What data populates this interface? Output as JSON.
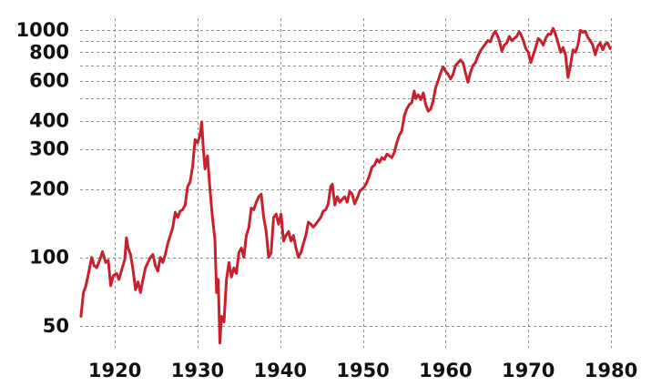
{
  "chart_data": {
    "type": "line",
    "title": "",
    "xlabel": "",
    "ylabel": "",
    "y_scale": "log",
    "grid": true,
    "xlim": [
      1915.8,
      1980
    ],
    "ylim": [
      40,
      1130
    ],
    "x_ticks": [
      1920,
      1930,
      1940,
      1950,
      1960,
      1970,
      1980
    ],
    "x_tick_labels": [
      "1920",
      "1930",
      "1940",
      "1950",
      "1960",
      "1970",
      "1980"
    ],
    "y_ticks": [
      50,
      100,
      200,
      300,
      400,
      600,
      800,
      1000
    ],
    "y_tick_labels": [
      "50",
      "100",
      "200",
      "300",
      "400",
      "600",
      "800",
      "1000"
    ],
    "y_grid_values": [
      50,
      100,
      200,
      300,
      400,
      500,
      600,
      700,
      800,
      900,
      1000
    ],
    "series": [
      {
        "color": "#c8202c",
        "points": [
          [
            1915.9,
            55
          ],
          [
            1916.2,
            70
          ],
          [
            1916.5,
            75
          ],
          [
            1916.9,
            88
          ],
          [
            1917.2,
            100
          ],
          [
            1917.5,
            92
          ],
          [
            1917.8,
            90
          ],
          [
            1918.2,
            98
          ],
          [
            1918.5,
            106
          ],
          [
            1918.9,
            95
          ],
          [
            1919.2,
            97
          ],
          [
            1919.5,
            75
          ],
          [
            1919.8,
            83
          ],
          [
            1920.2,
            85
          ],
          [
            1920.5,
            80
          ],
          [
            1920.9,
            90
          ],
          [
            1921.2,
            98
          ],
          [
            1921.4,
            122
          ],
          [
            1921.6,
            110
          ],
          [
            1921.9,
            103
          ],
          [
            1922.2,
            88
          ],
          [
            1922.5,
            72
          ],
          [
            1922.8,
            78
          ],
          [
            1923.1,
            70
          ],
          [
            1923.4,
            80
          ],
          [
            1923.7,
            90
          ],
          [
            1924.0,
            95
          ],
          [
            1924.3,
            100
          ],
          [
            1924.6,
            103
          ],
          [
            1924.9,
            92
          ],
          [
            1925.2,
            87
          ],
          [
            1925.5,
            100
          ],
          [
            1925.8,
            95
          ],
          [
            1926.1,
            103
          ],
          [
            1926.4,
            115
          ],
          [
            1926.7,
            125
          ],
          [
            1927.0,
            135
          ],
          [
            1927.3,
            158
          ],
          [
            1927.6,
            150
          ],
          [
            1927.9,
            160
          ],
          [
            1928.2,
            162
          ],
          [
            1928.5,
            170
          ],
          [
            1928.8,
            205
          ],
          [
            1929.1,
            215
          ],
          [
            1929.4,
            250
          ],
          [
            1929.7,
            330
          ],
          [
            1930.0,
            320
          ],
          [
            1930.3,
            345
          ],
          [
            1930.5,
            395
          ],
          [
            1930.7,
            300
          ],
          [
            1930.9,
            245
          ],
          [
            1931.2,
            280
          ],
          [
            1931.5,
            200
          ],
          [
            1931.8,
            150
          ],
          [
            1932.1,
            120
          ],
          [
            1932.3,
            70
          ],
          [
            1932.5,
            80
          ],
          [
            1932.7,
            42
          ],
          [
            1932.9,
            55
          ],
          [
            1933.2,
            52
          ],
          [
            1933.5,
            80
          ],
          [
            1933.8,
            95
          ],
          [
            1934.1,
            82
          ],
          [
            1934.4,
            90
          ],
          [
            1934.7,
            85
          ],
          [
            1935.0,
            105
          ],
          [
            1935.3,
            110
          ],
          [
            1935.6,
            100
          ],
          [
            1935.9,
            125
          ],
          [
            1936.2,
            135
          ],
          [
            1936.5,
            165
          ],
          [
            1936.8,
            162
          ],
          [
            1937.1,
            175
          ],
          [
            1937.4,
            185
          ],
          [
            1937.7,
            190
          ],
          [
            1938.0,
            150
          ],
          [
            1938.3,
            130
          ],
          [
            1938.6,
            100
          ],
          [
            1938.9,
            105
          ],
          [
            1939.2,
            150
          ],
          [
            1939.5,
            155
          ],
          [
            1939.8,
            140
          ],
          [
            1940.1,
            155
          ],
          [
            1940.4,
            118
          ],
          [
            1940.7,
            125
          ],
          [
            1941.0,
            130
          ],
          [
            1941.3,
            118
          ],
          [
            1941.6,
            125
          ],
          [
            1941.9,
            110
          ],
          [
            1942.2,
            100
          ],
          [
            1942.5,
            105
          ],
          [
            1942.8,
            115
          ],
          [
            1943.1,
            125
          ],
          [
            1943.4,
            143
          ],
          [
            1943.7,
            140
          ],
          [
            1944.0,
            136
          ],
          [
            1944.3,
            140
          ],
          [
            1944.6,
            145
          ],
          [
            1944.9,
            150
          ],
          [
            1945.2,
            160
          ],
          [
            1945.5,
            162
          ],
          [
            1945.8,
            172
          ],
          [
            1946.1,
            205
          ],
          [
            1946.3,
            210
          ],
          [
            1946.6,
            170
          ],
          [
            1946.9,
            185
          ],
          [
            1947.2,
            175
          ],
          [
            1947.5,
            180
          ],
          [
            1947.8,
            185
          ],
          [
            1948.1,
            175
          ],
          [
            1948.4,
            195
          ],
          [
            1948.7,
            190
          ],
          [
            1949.0,
            172
          ],
          [
            1949.3,
            182
          ],
          [
            1949.6,
            195
          ],
          [
            1949.9,
            200
          ],
          [
            1950.2,
            205
          ],
          [
            1950.5,
            215
          ],
          [
            1950.8,
            230
          ],
          [
            1951.1,
            250
          ],
          [
            1951.4,
            255
          ],
          [
            1951.7,
            270
          ],
          [
            1952.0,
            262
          ],
          [
            1952.3,
            275
          ],
          [
            1952.6,
            270
          ],
          [
            1952.9,
            285
          ],
          [
            1953.2,
            280
          ],
          [
            1953.5,
            275
          ],
          [
            1953.8,
            290
          ],
          [
            1954.1,
            320
          ],
          [
            1954.4,
            345
          ],
          [
            1954.7,
            360
          ],
          [
            1955.0,
            420
          ],
          [
            1955.3,
            450
          ],
          [
            1955.6,
            470
          ],
          [
            1955.9,
            480
          ],
          [
            1956.2,
            540
          ],
          [
            1956.4,
            500
          ],
          [
            1956.7,
            520
          ],
          [
            1957.0,
            495
          ],
          [
            1957.3,
            530
          ],
          [
            1957.6,
            470
          ],
          [
            1957.9,
            440
          ],
          [
            1958.2,
            450
          ],
          [
            1958.5,
            490
          ],
          [
            1958.8,
            560
          ],
          [
            1959.1,
            600
          ],
          [
            1959.4,
            650
          ],
          [
            1959.7,
            690
          ],
          [
            1960.0,
            660
          ],
          [
            1960.3,
            640
          ],
          [
            1960.6,
            610
          ],
          [
            1960.9,
            640
          ],
          [
            1961.2,
            700
          ],
          [
            1961.5,
            720
          ],
          [
            1961.8,
            740
          ],
          [
            1962.1,
            720
          ],
          [
            1962.4,
            650
          ],
          [
            1962.7,
            590
          ],
          [
            1963.0,
            650
          ],
          [
            1963.3,
            700
          ],
          [
            1963.6,
            720
          ],
          [
            1963.9,
            770
          ],
          [
            1964.2,
            810
          ],
          [
            1964.5,
            840
          ],
          [
            1964.8,
            870
          ],
          [
            1965.1,
            900
          ],
          [
            1965.4,
            890
          ],
          [
            1965.7,
            950
          ],
          [
            1966.0,
            990
          ],
          [
            1966.2,
            960
          ],
          [
            1966.5,
            900
          ],
          [
            1966.8,
            810
          ],
          [
            1967.1,
            860
          ],
          [
            1967.4,
            880
          ],
          [
            1967.7,
            940
          ],
          [
            1968.0,
            900
          ],
          [
            1968.3,
            920
          ],
          [
            1968.6,
            940
          ],
          [
            1968.9,
            985
          ],
          [
            1969.1,
            960
          ],
          [
            1969.4,
            900
          ],
          [
            1969.7,
            830
          ],
          [
            1970.0,
            800
          ],
          [
            1970.3,
            720
          ],
          [
            1970.6,
            780
          ],
          [
            1970.9,
            840
          ],
          [
            1971.2,
            920
          ],
          [
            1971.5,
            900
          ],
          [
            1971.8,
            860
          ],
          [
            1972.1,
            920
          ],
          [
            1972.4,
            960
          ],
          [
            1972.7,
            960
          ],
          [
            1973.0,
            1020
          ],
          [
            1973.3,
            960
          ],
          [
            1973.6,
            880
          ],
          [
            1973.9,
            800
          ],
          [
            1974.2,
            840
          ],
          [
            1974.5,
            780
          ],
          [
            1974.8,
            620
          ],
          [
            1975.1,
            700
          ],
          [
            1975.4,
            820
          ],
          [
            1975.7,
            800
          ],
          [
            1976.0,
            860
          ],
          [
            1976.3,
            1000
          ],
          [
            1976.6,
            980
          ],
          [
            1976.9,
            990
          ],
          [
            1977.2,
            930
          ],
          [
            1977.5,
            900
          ],
          [
            1977.8,
            860
          ],
          [
            1978.1,
            780
          ],
          [
            1978.4,
            850
          ],
          [
            1978.7,
            880
          ],
          [
            1979.0,
            820
          ],
          [
            1979.3,
            870
          ],
          [
            1979.6,
            880
          ],
          [
            1979.9,
            830
          ]
        ]
      }
    ]
  }
}
